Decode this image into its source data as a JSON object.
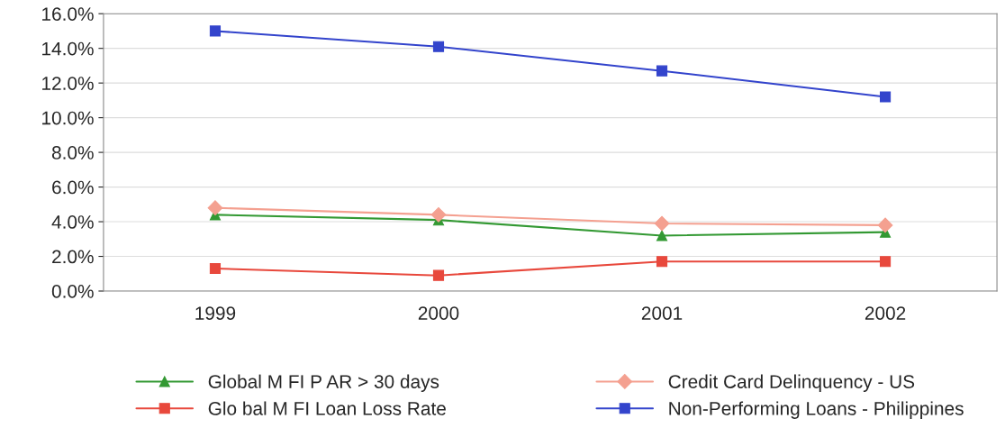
{
  "chart_data": {
    "type": "line",
    "categories": [
      "1999",
      "2000",
      "2001",
      "2002"
    ],
    "series": [
      {
        "name": "Global M FI P AR > 30 days",
        "color": "#339933",
        "marker": "triangle",
        "values": [
          4.4,
          4.1,
          3.2,
          3.4
        ]
      },
      {
        "name": "Glo bal M FI Loan Loss Rate",
        "color": "#e8483c",
        "marker": "square",
        "values": [
          1.3,
          0.9,
          1.7,
          1.7
        ]
      },
      {
        "name": "Credit Card Delinquency - US",
        "color": "#f4a090",
        "marker": "diamond",
        "values": [
          4.8,
          4.4,
          3.9,
          3.8
        ]
      },
      {
        "name": "Non-Performing Loans - Philippines",
        "color": "#3344cc",
        "marker": "square",
        "values": [
          15.0,
          14.1,
          12.7,
          11.2
        ]
      }
    ],
    "ylim": [
      0,
      16
    ],
    "yticks": [
      {
        "value": 0,
        "label": "0.0%"
      },
      {
        "value": 2,
        "label": "2.0%"
      },
      {
        "value": 4,
        "label": "4.0%"
      },
      {
        "value": 6,
        "label": "6.0%"
      },
      {
        "value": 8,
        "label": "8.0%"
      },
      {
        "value": 10,
        "label": "10.0%"
      },
      {
        "value": 12,
        "label": "12.0%"
      },
      {
        "value": 14,
        "label": "14.0%"
      },
      {
        "value": 16,
        "label": "16.0%"
      }
    ],
    "grid": "y",
    "legend": "bottom",
    "line_style": "solid"
  }
}
